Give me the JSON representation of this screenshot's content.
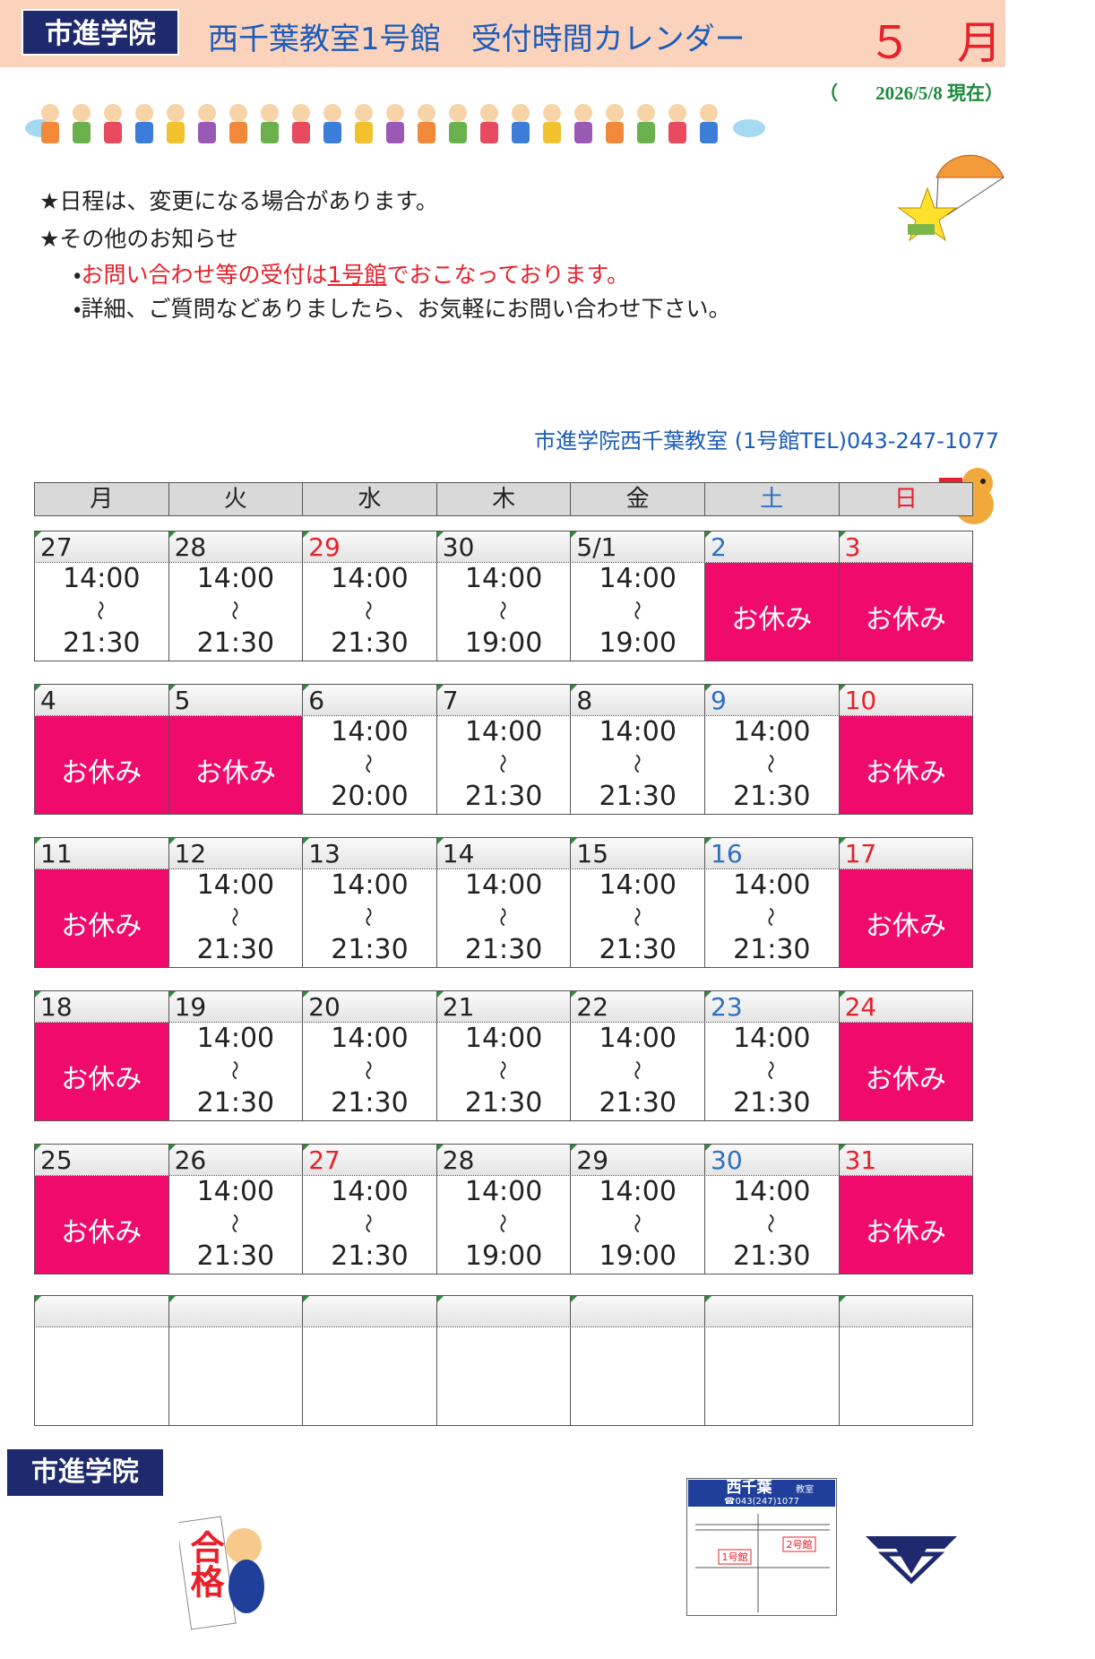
{
  "header": {
    "brand": "市進学院",
    "title": "西千葉教室1号館　受付時間カレンダー",
    "month": "５　月"
  },
  "date_note": "（　　2026/5/8 現在）",
  "notices": [
    "★日程は、変更になる場合があります。",
    "★その他のお知らせ"
  ],
  "bullets": [
    [
      {
        "text": "・"
      },
      {
        "text": "お問い合わせ等の受付は",
        "color": "#e8202a"
      },
      {
        "text": "1号館",
        "color": "#e8202a",
        "underline": true
      },
      {
        "text": "でおこなっております。",
        "color": "#e8202a"
      }
    ],
    [
      {
        "text": "・詳細、ご質問などありましたら、お気軽にお問い合わせ下さい。"
      }
    ]
  ],
  "contact": "市進学院西千葉教室 (1号館TEL)043-247-1077",
  "weekdays": [
    {
      "label": "月"
    },
    {
      "label": "火"
    },
    {
      "label": "水"
    },
    {
      "label": "木"
    },
    {
      "label": "金"
    },
    {
      "label": "土",
      "color": "#2f6fc0"
    },
    {
      "label": "日",
      "color": "#e8202a"
    }
  ],
  "weeks": [
    [
      {
        "date": "27",
        "hours": [
          "14:00",
          "～",
          "21:30"
        ]
      },
      {
        "date": "28",
        "hours": [
          "14:00",
          "～",
          "21:30"
        ]
      },
      {
        "date": "29",
        "color": "#e8202a",
        "hours": [
          "14:00",
          "～",
          "21:30"
        ]
      },
      {
        "date": "30",
        "hours": [
          "14:00",
          "～",
          "19:00"
        ]
      },
      {
        "date": "5/1",
        "hours": [
          "14:00",
          "～",
          "19:00"
        ]
      },
      {
        "date": "2",
        "color": "#2f6fc0",
        "closed": "お休み"
      },
      {
        "date": "3",
        "color": "#e8202a",
        "closed": "お休み"
      }
    ],
    [
      {
        "date": "4",
        "closed": "お休み"
      },
      {
        "date": "5",
        "closed": "お休み"
      },
      {
        "date": "6",
        "hours": [
          "14:00",
          "～",
          "20:00"
        ]
      },
      {
        "date": "7",
        "hours": [
          "14:00",
          "～",
          "21:30"
        ]
      },
      {
        "date": "8",
        "hours": [
          "14:00",
          "～",
          "21:30"
        ]
      },
      {
        "date": "9",
        "color": "#2f6fc0",
        "hours": [
          "14:00",
          "～",
          "21:30"
        ]
      },
      {
        "date": "10",
        "color": "#e8202a",
        "closed": "お休み"
      }
    ],
    [
      {
        "date": "11",
        "closed": "お休み"
      },
      {
        "date": "12",
        "hours": [
          "14:00",
          "～",
          "21:30"
        ]
      },
      {
        "date": "13",
        "hours": [
          "14:00",
          "～",
          "21:30"
        ]
      },
      {
        "date": "14",
        "hours": [
          "14:00",
          "～",
          "21:30"
        ]
      },
      {
        "date": "15",
        "hours": [
          "14:00",
          "～",
          "21:30"
        ]
      },
      {
        "date": "16",
        "color": "#2f6fc0",
        "hours": [
          "14:00",
          "～",
          "21:30"
        ]
      },
      {
        "date": "17",
        "color": "#e8202a",
        "closed": "お休み"
      }
    ],
    [
      {
        "date": "18",
        "closed": "お休み"
      },
      {
        "date": "19",
        "hours": [
          "14:00",
          "～",
          "21:30"
        ]
      },
      {
        "date": "20",
        "hours": [
          "14:00",
          "～",
          "21:30"
        ]
      },
      {
        "date": "21",
        "hours": [
          "14:00",
          "～",
          "21:30"
        ]
      },
      {
        "date": "22",
        "hours": [
          "14:00",
          "～",
          "21:30"
        ]
      },
      {
        "date": "23",
        "color": "#2f6fc0",
        "hours": [
          "14:00",
          "～",
          "21:30"
        ]
      },
      {
        "date": "24",
        "color": "#e8202a",
        "closed": "お休み"
      }
    ],
    [
      {
        "date": "25",
        "closed": "お休み"
      },
      {
        "date": "26",
        "hours": [
          "14:00",
          "～",
          "21:30"
        ]
      },
      {
        "date": "27",
        "color": "#e8202a",
        "hours": [
          "14:00",
          "～",
          "21:30"
        ]
      },
      {
        "date": "28",
        "hours": [
          "14:00",
          "～",
          "19:00"
        ]
      },
      {
        "date": "29",
        "hours": [
          "14:00",
          "～",
          "19:00"
        ]
      },
      {
        "date": "30",
        "color": "#2f6fc0",
        "hours": [
          "14:00",
          "～",
          "21:30"
        ]
      },
      {
        "date": "31",
        "color": "#e8202a",
        "closed": "お休み"
      }
    ]
  ],
  "footer": {
    "brand": "市進学院",
    "sign": "合格",
    "map": {
      "title": "西千葉",
      "title_small": "教室",
      "phone": "☎043(247)1077",
      "labels": [
        "1号館",
        "2号館"
      ]
    }
  }
}
